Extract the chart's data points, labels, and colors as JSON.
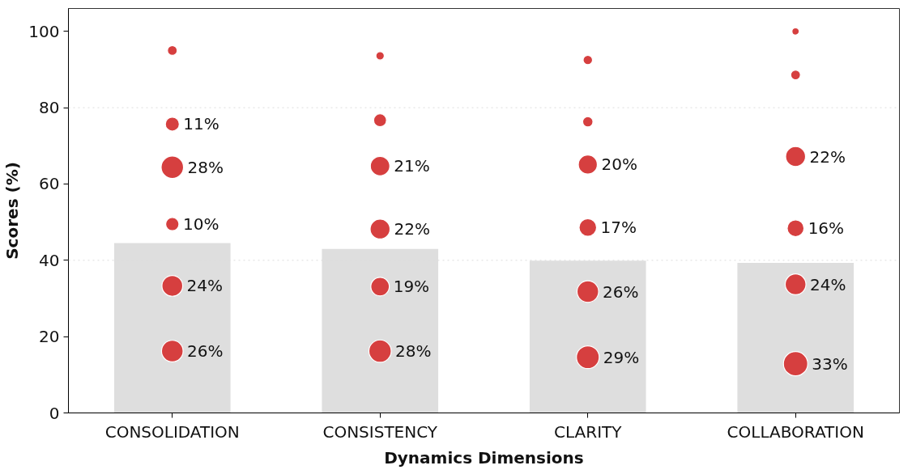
{
  "chart_data": {
    "type": "bubble",
    "xlabel": "Dynamics Dimensions",
    "ylabel": "Scores (%)",
    "categories": [
      "CONSOLIDATION",
      "CONSISTENCY",
      "CLARITY",
      "COLLABORATION"
    ],
    "ylim": [
      0,
      106
    ],
    "yticks": [
      0,
      20,
      40,
      60,
      80,
      100
    ],
    "grid": false,
    "series": [
      {
        "type": "bar",
        "color": "#dedede",
        "values": [
          44.5,
          43.0,
          39.9,
          39.3
        ]
      },
      {
        "color": "#d63f3f",
        "x": [
          "CONSOLIDATION",
          "CONSOLIDATION",
          "CONSOLIDATION",
          "CONSOLIDATION",
          "CONSOLIDATION",
          "CONSOLIDATION",
          "CONSISTENCY",
          "CONSISTENCY",
          "CONSISTENCY",
          "CONSISTENCY",
          "CONSISTENCY",
          "CONSISTENCY",
          "CLARITY",
          "CLARITY",
          "CLARITY",
          "CLARITY",
          "CLARITY",
          "CLARITY",
          "COLLABORATION",
          "COLLABORATION",
          "COLLABORATION",
          "COLLABORATION",
          "COLLABORATION",
          "COLLABORATION"
        ],
        "values": [
          95.0,
          75.7,
          64.4,
          49.5,
          33.3,
          16.2,
          93.6,
          76.7,
          64.7,
          48.2,
          33.1,
          16.2,
          92.5,
          76.3,
          65.1,
          48.6,
          31.8,
          14.6,
          100,
          88.6,
          67.2,
          48.4,
          33.7,
          12.9
        ],
        "sizes": [
          0.16,
          0.33,
          0.85,
          0.3,
          0.73,
          0.79,
          0.12,
          0.28,
          0.64,
          0.67,
          0.58,
          0.85,
          0.15,
          0.18,
          0.61,
          0.52,
          0.79,
          0.88,
          0.09,
          0.16,
          0.67,
          0.48,
          0.73,
          1.0
        ]
      }
    ],
    "annotations": [
      {
        "text": "11%",
        "x": "CONSOLIDATION",
        "y": 75.7
      },
      {
        "text": "28%",
        "x": "CONSOLIDATION",
        "y": 64.4
      },
      {
        "text": "10%",
        "x": "CONSOLIDATION",
        "y": 49.5
      },
      {
        "text": "24%",
        "x": "CONSOLIDATION",
        "y": 33.3
      },
      {
        "text": "26%",
        "x": "CONSOLIDATION",
        "y": 16.2
      },
      {
        "text": "21%",
        "x": "CONSISTENCY",
        "y": 64.7
      },
      {
        "text": "22%",
        "x": "CONSISTENCY",
        "y": 48.2
      },
      {
        "text": "19%",
        "x": "CONSISTENCY",
        "y": 33.1
      },
      {
        "text": "28%",
        "x": "CONSISTENCY",
        "y": 16.2
      },
      {
        "text": "20%",
        "x": "CLARITY",
        "y": 65.1
      },
      {
        "text": "17%",
        "x": "CLARITY",
        "y": 48.6
      },
      {
        "text": "26%",
        "x": "CLARITY",
        "y": 31.8
      },
      {
        "text": "29%",
        "x": "CLARITY",
        "y": 14.6
      },
      {
        "text": "22%",
        "x": "COLLABORATION",
        "y": 67.2
      },
      {
        "text": "16%",
        "x": "COLLABORATION",
        "y": 48.4
      },
      {
        "text": "24%",
        "x": "COLLABORATION",
        "y": 33.7
      },
      {
        "text": "33%",
        "x": "COLLABORATION",
        "y": 12.9
      }
    ],
    "ref_lines": [
      {
        "axis": "y",
        "value": 40,
        "color": "#dddddd",
        "line_style": "dotted"
      },
      {
        "axis": "y",
        "value": 80,
        "color": "#dddddd",
        "line_style": "dotted"
      }
    ]
  }
}
